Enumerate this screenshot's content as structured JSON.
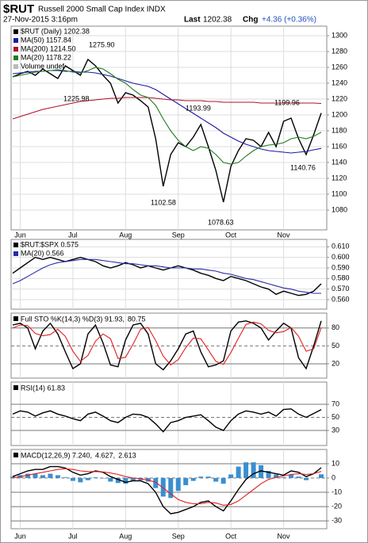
{
  "header": {
    "symbol": "$RUT",
    "name": "Russell 2000 Small Cap Index INDX",
    "date": "27-Nov-2015 3:16pm",
    "last_label": "Last",
    "last": "1202.38",
    "chg_label": "Chg",
    "chg": "+4.36 (+0.36%)"
  },
  "chart_data": [
    {
      "type": "line",
      "categories": [
        null,
        "Jun",
        null,
        null,
        null,
        null,
        null,
        null,
        "Jul",
        null,
        null,
        null,
        null,
        null,
        null,
        "Aug",
        null,
        null,
        null,
        null,
        null,
        null,
        "Sep",
        null,
        null,
        null,
        null,
        null,
        null,
        "Oct",
        null,
        null,
        null,
        null,
        null,
        null,
        "Nov",
        null,
        null,
        null,
        null,
        null
      ],
      "series": [
        {
          "name": "$RUT (Daily) 1202.38",
          "color": "#000000",
          "values": [
            1248,
            1252,
            1255,
            1250,
            1258,
            1252,
            1246,
            1262,
            1256,
            1250,
            1270,
            1262,
            1250,
            1240,
            1215,
            1228,
            1225,
            1218,
            1210,
            1170,
            1110,
            1150,
            1165,
            1160,
            1172,
            1188,
            1160,
            1130,
            1090,
            1135,
            1155,
            1170,
            1168,
            1160,
            1178,
            1160,
            1192,
            1196,
            1170,
            1150,
            1175,
            1202.38
          ]
        },
        {
          "name": "MA(50) 1157.84",
          "color": "#1a1aa0",
          "values": [
            1252,
            1253,
            1254,
            1255,
            1255,
            1256,
            1256,
            1255,
            1255,
            1254,
            1254,
            1253,
            1251,
            1249,
            1246,
            1243,
            1240,
            1238,
            1236,
            1232,
            1226,
            1220,
            1214,
            1208,
            1202,
            1196,
            1190,
            1184,
            1177,
            1172,
            1167,
            1163,
            1160,
            1157,
            1155,
            1154,
            1153,
            1152,
            1153,
            1154,
            1156,
            1157.84
          ]
        },
        {
          "name": "MA(200) 1214.50",
          "color": "#b0102a",
          "values": [
            1195,
            1198,
            1201,
            1204,
            1207,
            1209,
            1211,
            1213,
            1215,
            1217,
            1218,
            1219,
            1220,
            1221,
            1221,
            1222,
            1222,
            1222,
            1222,
            1221,
            1220,
            1219,
            1219,
            1218,
            1218,
            1218,
            1217,
            1217,
            1216,
            1216,
            1216,
            1216,
            1216,
            1215,
            1215,
            1215,
            1215,
            1215,
            1215,
            1215,
            1215,
            1214.5
          ]
        },
        {
          "name": "MA(20) 1178.22",
          "color": "#1f7a1f",
          "values": [
            1248,
            1250,
            1252,
            1254,
            1255,
            1256,
            1257,
            1256,
            1254,
            1253,
            1256,
            1260,
            1258,
            1252,
            1245,
            1240,
            1232,
            1225,
            1222,
            1212,
            1195,
            1180,
            1168,
            1160,
            1155,
            1160,
            1158,
            1150,
            1140,
            1138,
            1140,
            1148,
            1155,
            1160,
            1162,
            1163,
            1165,
            1170,
            1172,
            1170,
            1173,
            1178.22
          ]
        }
      ],
      "legend_extra": "Volume undef",
      "annotations": [
        "1275.90",
        "1225.98",
        "1193.99",
        "1199.96",
        "1102.58",
        "1078.63",
        "1140.76"
      ],
      "ylim": [
        1055,
        1312
      ],
      "yticks": [
        1080,
        1100,
        1120,
        1140,
        1160,
        1180,
        1200,
        1220,
        1240,
        1260,
        1280,
        1300
      ],
      "grid": true
    },
    {
      "type": "line",
      "series": [
        {
          "name": "$RUT:$SPX 0.575",
          "color": "#000000",
          "values": [
            0.585,
            0.59,
            0.595,
            0.6,
            0.598,
            0.6,
            0.598,
            0.596,
            0.598,
            0.6,
            0.598,
            0.596,
            0.592,
            0.59,
            0.592,
            0.595,
            0.593,
            0.59,
            0.592,
            0.59,
            0.588,
            0.59,
            0.592,
            0.59,
            0.588,
            0.585,
            0.583,
            0.58,
            0.578,
            0.582,
            0.58,
            0.578,
            0.575,
            0.572,
            0.57,
            0.565,
            0.568,
            0.566,
            0.564,
            0.565,
            0.568,
            0.575
          ]
        },
        {
          "name": "MA(20) 0.566",
          "color": "#2a2aa8",
          "values": [
            0.575,
            0.578,
            0.582,
            0.586,
            0.59,
            0.593,
            0.595,
            0.596,
            0.597,
            0.598,
            0.598,
            0.598,
            0.597,
            0.596,
            0.595,
            0.594,
            0.594,
            0.593,
            0.592,
            0.592,
            0.591,
            0.59,
            0.59,
            0.59,
            0.589,
            0.589,
            0.588,
            0.587,
            0.585,
            0.584,
            0.582,
            0.58,
            0.579,
            0.577,
            0.575,
            0.573,
            0.571,
            0.57,
            0.568,
            0.567,
            0.566,
            0.566
          ]
        }
      ],
      "ylim": [
        0.551,
        0.617
      ],
      "yticks": [
        {
          "value": 0.56,
          "label": "0.560"
        },
        {
          "value": 0.57,
          "label": "0.570"
        },
        {
          "value": 0.58,
          "label": "0.580"
        },
        {
          "value": 0.59,
          "label": "0.590"
        },
        {
          "value": 0.6,
          "label": "0.600"
        },
        {
          "value": 0.61,
          "label": "0.610"
        }
      ],
      "grid": true
    },
    {
      "type": "line",
      "series": [
        {
          "name": "Full STO %K(14,3) %D(3) 91.93,",
          "color": "#000000",
          "values": [
            85,
            88,
            80,
            45,
            75,
            88,
            70,
            40,
            12,
            20,
            70,
            85,
            55,
            18,
            15,
            60,
            85,
            88,
            70,
            20,
            10,
            25,
            45,
            70,
            75,
            40,
            15,
            18,
            25,
            75,
            90,
            92,
            88,
            80,
            60,
            75,
            88,
            80,
            30,
            12,
            50,
            91.93
          ]
        },
        {
          "name": "80.75",
          "color": "#e02020",
          "values": [
            80,
            85,
            84,
            71,
            67,
            69,
            78,
            66,
            41,
            24,
            34,
            58,
            70,
            62,
            29,
            31,
            53,
            78,
            81,
            59,
            33,
            18,
            27,
            47,
            63,
            62,
            43,
            24,
            19,
            39,
            63,
            86,
            90,
            87,
            76,
            72,
            74,
            81,
            66,
            41,
            45,
            80.75
          ]
        }
      ],
      "ylim": [
        -4,
        105
      ],
      "yticks": [
        20,
        50,
        80
      ],
      "grid": true
    },
    {
      "type": "line",
      "series": [
        {
          "name": "RSI(14) 61.83",
          "color": "#000000",
          "values": [
            55,
            60,
            58,
            52,
            57,
            60,
            55,
            52,
            48,
            45,
            55,
            58,
            52,
            45,
            42,
            50,
            55,
            54,
            50,
            40,
            28,
            42,
            45,
            50,
            52,
            54,
            45,
            35,
            30,
            45,
            55,
            60,
            58,
            55,
            58,
            52,
            62,
            63,
            55,
            50,
            56,
            61.83
          ]
        }
      ],
      "ylim": [
        7,
        104
      ],
      "yticks": [
        30,
        50,
        70
      ],
      "grid": true
    },
    {
      "type": "line",
      "categories": [
        null,
        "Jun",
        null,
        null,
        null,
        null,
        null,
        null,
        "Jul",
        null,
        null,
        null,
        null,
        null,
        null,
        "Aug",
        null,
        null,
        null,
        null,
        null,
        null,
        "Sep",
        null,
        null,
        null,
        null,
        null,
        null,
        "Oct",
        null,
        null,
        null,
        null,
        null,
        null,
        "Nov",
        null,
        null,
        null,
        null,
        null
      ],
      "series": [
        {
          "name": "MACD(12,26,9) 7.240,",
          "color": "#000000",
          "values": [
            1,
            3,
            5,
            6,
            6,
            8,
            8,
            7,
            4,
            2,
            3,
            5,
            4,
            1,
            -1,
            -3,
            -2,
            -2,
            -4,
            -10,
            -20,
            -25,
            -24,
            -22,
            -20,
            -17,
            -16,
            -20,
            -23,
            -16,
            -8,
            -1,
            3,
            5,
            4,
            3,
            2,
            5,
            4,
            1,
            3,
            7.24
          ]
        },
        {
          "name": "4.627,",
          "color": "#e02020",
          "values": [
            0,
            1,
            2,
            3,
            4,
            5,
            6,
            6.5,
            6,
            5,
            4.5,
            4.5,
            4.3,
            3.5,
            2.5,
            1,
            0,
            -0.5,
            -1.5,
            -3,
            -7,
            -11,
            -15,
            -17,
            -18,
            -18,
            -17,
            -17.5,
            -19,
            -18.5,
            -16,
            -12,
            -8,
            -4,
            -1,
            0.5,
            1.5,
            2.5,
            3,
            2.5,
            3,
            4.627
          ]
        },
        {
          "name": "2.613",
          "color": "#3a8fd0",
          "style": "bar",
          "values": [
            1,
            2,
            3,
            3,
            2,
            3,
            2,
            0.5,
            -2,
            -3,
            -1.5,
            0.5,
            -0.3,
            -2.5,
            -3.5,
            -4,
            -2,
            -1.5,
            -2.5,
            -7,
            -13,
            -14,
            -9,
            -5,
            -2,
            1,
            1,
            -2.5,
            -4,
            2.5,
            8,
            11,
            11,
            9,
            5,
            2.5,
            0.5,
            2.5,
            1,
            -1.5,
            0,
            2.613
          ]
        }
      ],
      "ylim": [
        -35.5,
        20
      ],
      "yticks": [
        10,
        0,
        -10,
        -20,
        -30
      ],
      "grid": true
    }
  ]
}
